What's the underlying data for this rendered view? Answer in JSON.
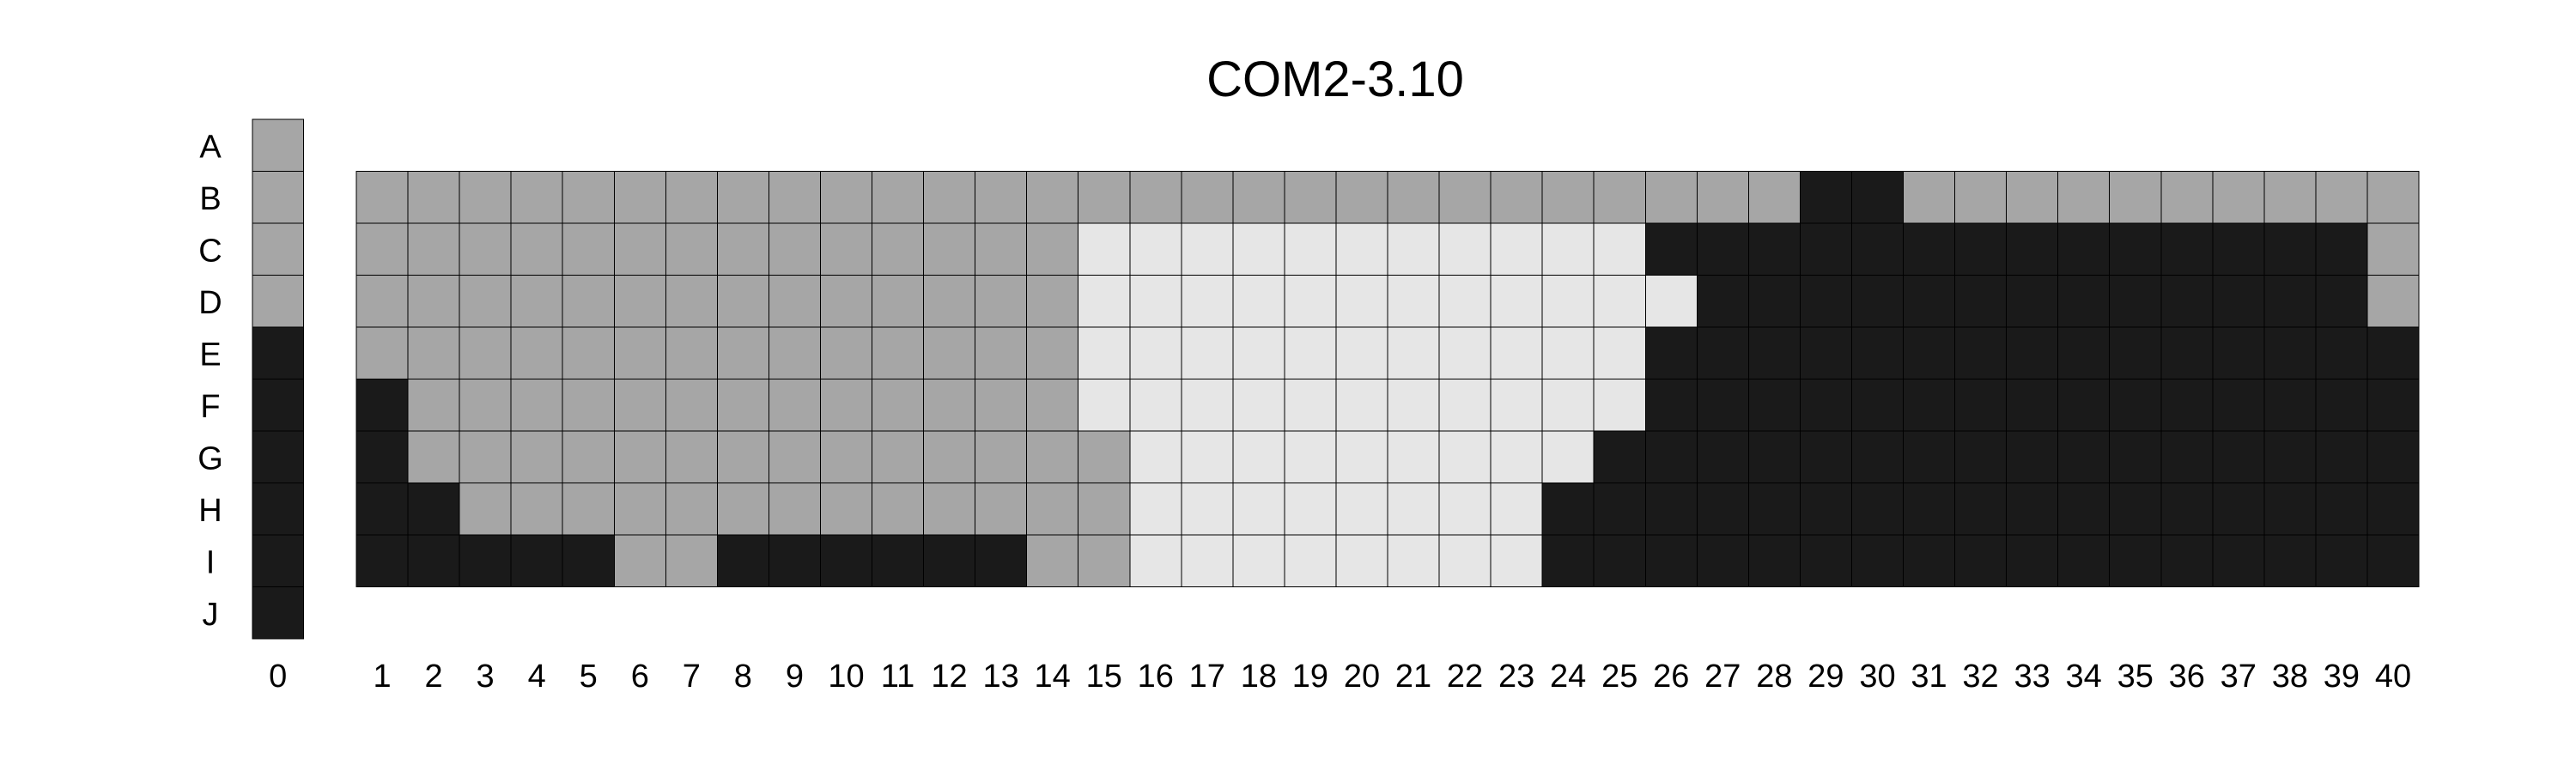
{
  "chart_data": {
    "type": "heatmap",
    "title": "COM2-3.10",
    "colors": {
      "0": "#e6e6e6",
      "1": "#a6a6a6",
      "2": "#1a1a1a"
    },
    "row_labels": [
      "A",
      "B",
      "C",
      "D",
      "E",
      "F",
      "G",
      "H",
      "I",
      "J"
    ],
    "column0": {
      "label": "0",
      "values": [
        1,
        1,
        1,
        1,
        2,
        2,
        2,
        2,
        2,
        2
      ]
    },
    "columns": [
      "1",
      "2",
      "3",
      "4",
      "5",
      "6",
      "7",
      "8",
      "9",
      "10",
      "11",
      "12",
      "13",
      "14",
      "15",
      "16",
      "17",
      "18",
      "19",
      "20",
      "21",
      "22",
      "23",
      "24",
      "25",
      "26",
      "27",
      "28",
      "29",
      "30",
      "31",
      "32",
      "33",
      "34",
      "35",
      "36",
      "37",
      "38",
      "39",
      "40"
    ],
    "grid_rows": [
      "B",
      "C",
      "D",
      "E",
      "F",
      "G",
      "H",
      "I"
    ],
    "values": [
      [
        1,
        1,
        1,
        1,
        1,
        1,
        1,
        1,
        1,
        1,
        1,
        1,
        1,
        1,
        1,
        1,
        1,
        1,
        1,
        1,
        1,
        1,
        1,
        1,
        1,
        1,
        1,
        1,
        2,
        2,
        1,
        1,
        1,
        1,
        1,
        1,
        1,
        1,
        1,
        1
      ],
      [
        1,
        1,
        1,
        1,
        1,
        1,
        1,
        1,
        1,
        1,
        1,
        1,
        1,
        1,
        0,
        0,
        0,
        0,
        0,
        0,
        0,
        0,
        0,
        0,
        0,
        2,
        2,
        2,
        2,
        2,
        2,
        2,
        2,
        2,
        2,
        2,
        2,
        2,
        2,
        1
      ],
      [
        1,
        1,
        1,
        1,
        1,
        1,
        1,
        1,
        1,
        1,
        1,
        1,
        1,
        1,
        0,
        0,
        0,
        0,
        0,
        0,
        0,
        0,
        0,
        0,
        0,
        0,
        2,
        2,
        2,
        2,
        2,
        2,
        2,
        2,
        2,
        2,
        2,
        2,
        2,
        1
      ],
      [
        1,
        1,
        1,
        1,
        1,
        1,
        1,
        1,
        1,
        1,
        1,
        1,
        1,
        1,
        0,
        0,
        0,
        0,
        0,
        0,
        0,
        0,
        0,
        0,
        0,
        2,
        2,
        2,
        2,
        2,
        2,
        2,
        2,
        2,
        2,
        2,
        2,
        2,
        2,
        2
      ],
      [
        2,
        1,
        1,
        1,
        1,
        1,
        1,
        1,
        1,
        1,
        1,
        1,
        1,
        1,
        0,
        0,
        0,
        0,
        0,
        0,
        0,
        0,
        0,
        0,
        0,
        2,
        2,
        2,
        2,
        2,
        2,
        2,
        2,
        2,
        2,
        2,
        2,
        2,
        2,
        2
      ],
      [
        2,
        1,
        1,
        1,
        1,
        1,
        1,
        1,
        1,
        1,
        1,
        1,
        1,
        1,
        1,
        0,
        0,
        0,
        0,
        0,
        0,
        0,
        0,
        0,
        2,
        2,
        2,
        2,
        2,
        2,
        2,
        2,
        2,
        2,
        2,
        2,
        2,
        2,
        2,
        2
      ],
      [
        2,
        2,
        1,
        1,
        1,
        1,
        1,
        1,
        1,
        1,
        1,
        1,
        1,
        1,
        1,
        0,
        0,
        0,
        0,
        0,
        0,
        0,
        0,
        2,
        2,
        2,
        2,
        2,
        2,
        2,
        2,
        2,
        2,
        2,
        2,
        2,
        2,
        2,
        2,
        2
      ],
      [
        2,
        2,
        2,
        2,
        2,
        1,
        1,
        2,
        2,
        2,
        2,
        2,
        2,
        1,
        1,
        0,
        0,
        0,
        0,
        0,
        0,
        0,
        0,
        2,
        2,
        2,
        2,
        2,
        2,
        2,
        2,
        2,
        2,
        2,
        2,
        2,
        2,
        2,
        2,
        2
      ]
    ]
  }
}
